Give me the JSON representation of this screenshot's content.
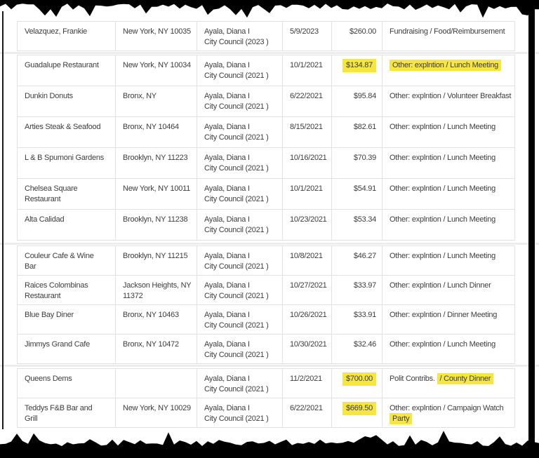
{
  "page": {
    "highlight_color": "#f5e642",
    "edge_color": "#000000",
    "text_color": "#3d3d3d"
  },
  "table": {
    "columns": [
      "payee-name",
      "payee-address",
      "candidate",
      "date",
      "amount",
      "purpose"
    ],
    "rows": [
      {
        "name_lines": [
          "Velazquez, Frankie"
        ],
        "address_lines": [
          "New York, NY 10035"
        ],
        "candidate_lines": [
          "Ayala, Diana I",
          "City Council (2023 )"
        ],
        "date": "5/9/2023",
        "amount": "$260.00",
        "amount_highlighted": false,
        "purpose_lines": [
          [
            {
              "text": "Fundraising / Food/Reimbursement",
              "highlight": false
            }
          ]
        ]
      },
      {
        "name_lines": [
          "Guadalupe Restaurant"
        ],
        "address_lines": [
          "New York, NY 10034"
        ],
        "candidate_lines": [
          "Ayala, Diana I",
          "City Council (2021 )"
        ],
        "date": "10/1/2021",
        "amount": "$134.87",
        "amount_highlighted": true,
        "purpose_lines": [
          [
            {
              "text": "Other: explntion / Lunch Meeting",
              "highlight": true
            }
          ]
        ]
      },
      {
        "name_lines": [
          "Dunkin Donuts"
        ],
        "address_lines": [
          "Bronx, NY"
        ],
        "candidate_lines": [
          "Ayala, Diana I",
          "City Council (2021 )"
        ],
        "date": "6/22/2021",
        "amount": "$95.84",
        "amount_highlighted": false,
        "purpose_lines": [
          [
            {
              "text": "Other: explntion / Volunteer Breakfast",
              "highlight": false
            }
          ]
        ]
      },
      {
        "name_lines": [
          "Arties Steak & Seafood"
        ],
        "address_lines": [
          "Bronx, NY 10464"
        ],
        "candidate_lines": [
          "Ayala, Diana I",
          "City Council (2021 )"
        ],
        "date": "8/15/2021",
        "amount": "$82.61",
        "amount_highlighted": false,
        "purpose_lines": [
          [
            {
              "text": "Other: explntion / Lunch Meeting",
              "highlight": false
            }
          ]
        ]
      },
      {
        "name_lines": [
          "L & B Spumoni Gardens"
        ],
        "address_lines": [
          "Brooklyn, NY 11223"
        ],
        "candidate_lines": [
          "Ayala, Diana I",
          "City Council (2021 )"
        ],
        "date": "10/16/2021",
        "amount": "$70.39",
        "amount_highlighted": false,
        "purpose_lines": [
          [
            {
              "text": "Other: explntion / Lunch Meeting",
              "highlight": false
            }
          ]
        ]
      },
      {
        "name_lines": [
          "Chelsea Square",
          "Restaurant"
        ],
        "address_lines": [
          "New York, NY 10011"
        ],
        "candidate_lines": [
          "Ayala, Diana I",
          "City Council (2021 )"
        ],
        "date": "10/1/2021",
        "amount": "$54.91",
        "amount_highlighted": false,
        "purpose_lines": [
          [
            {
              "text": "Other: explntion / Lunch Meeting",
              "highlight": false
            }
          ]
        ]
      },
      {
        "name_lines": [
          "Alta Calidad"
        ],
        "address_lines": [
          "Brooklyn, NY 11238"
        ],
        "candidate_lines": [
          "Ayala, Diana I",
          "City Council (2021 )"
        ],
        "date": "10/23/2021",
        "amount": "$53.34",
        "amount_highlighted": false,
        "purpose_lines": [
          [
            {
              "text": "Other: explntion / Lunch Meeting",
              "highlight": false
            }
          ]
        ]
      },
      {
        "name_lines": [
          "Couleur Cafe & Wine",
          "Bar"
        ],
        "address_lines": [
          "Brooklyn, NY 11215"
        ],
        "candidate_lines": [
          "Ayala, Diana I",
          "City Council (2021 )"
        ],
        "date": "10/8/2021",
        "amount": "$46.27",
        "amount_highlighted": false,
        "purpose_lines": [
          [
            {
              "text": "Other: explntion / Lunch Meeting",
              "highlight": false
            }
          ]
        ]
      },
      {
        "name_lines": [
          "Raices Colombinas",
          "Restaurant"
        ],
        "address_lines": [
          "Jackson Heights, NY",
          "11372"
        ],
        "candidate_lines": [
          "Ayala, Diana I",
          "City Council (2021 )"
        ],
        "date": "10/27/2021",
        "amount": "$33.97",
        "amount_highlighted": false,
        "purpose_lines": [
          [
            {
              "text": "Other: explntion / Lunch Dinner",
              "highlight": false
            }
          ]
        ]
      },
      {
        "name_lines": [
          "Blue Bay Diner"
        ],
        "address_lines": [
          "Bronx, NY 10463"
        ],
        "candidate_lines": [
          "Ayala, Diana I",
          "City Council (2021 )"
        ],
        "date": "10/26/2021",
        "amount": "$33.91",
        "amount_highlighted": false,
        "purpose_lines": [
          [
            {
              "text": "Other: explntion / Dinner Meeting",
              "highlight": false
            }
          ]
        ]
      },
      {
        "name_lines": [
          "Jimmys Grand Cafe"
        ],
        "address_lines": [
          "Bronx, NY 10472"
        ],
        "candidate_lines": [
          "Ayala, Diana I",
          "City Council (2021 )"
        ],
        "date": "10/30/2021",
        "amount": "$32.46",
        "amount_highlighted": false,
        "purpose_lines": [
          [
            {
              "text": "Other: explntion / Lunch Meeting",
              "highlight": false
            }
          ]
        ]
      },
      {
        "name_lines": [
          "Queens Dems"
        ],
        "address_lines": [],
        "candidate_lines": [
          "Ayala, Diana I",
          "City Council (2021 )"
        ],
        "date": "11/2/2021",
        "amount": "$700.00",
        "amount_highlighted": true,
        "purpose_lines": [
          [
            {
              "text": "Polit Contribs. ",
              "highlight": false
            },
            {
              "text": "/ County Dinner",
              "highlight": true
            }
          ]
        ]
      },
      {
        "name_lines": [
          "Teddys F&B Bar and",
          "Grill"
        ],
        "address_lines": [
          "New York, NY 10029"
        ],
        "candidate_lines": [
          "Ayala, Diana I",
          "City Council (2021 )"
        ],
        "date": "6/22/2021",
        "amount": "$669.50",
        "amount_highlighted": true,
        "purpose_lines": [
          [
            {
              "text": "Other: explntion / Campaign Watch",
              "highlight": false
            }
          ],
          [
            {
              "text": "Party",
              "highlight": true
            }
          ]
        ]
      }
    ]
  }
}
